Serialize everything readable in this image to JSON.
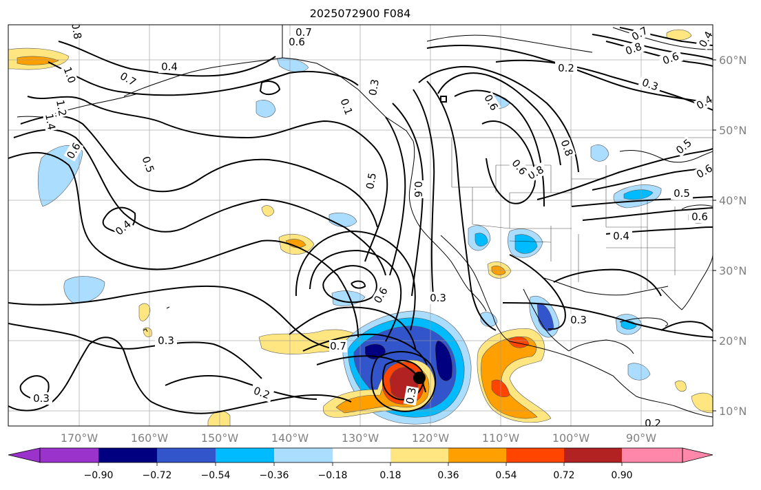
{
  "title": "2025072900 F084",
  "colors": {
    "purple": "#9933cc",
    "navy": "#000080",
    "royal": "#3355cc",
    "cyan": "#00bbff",
    "light_blue": "#aaddff",
    "white": "#ffffff",
    "light_yellow": "#ffe680",
    "orange": "#ffa000",
    "red_orange": "#ff4500",
    "dark_red": "#b22222",
    "pink": "#ff88aa",
    "grid": "#999999"
  },
  "map": {
    "lon_range": [
      -180,
      -80
    ],
    "lat_range": [
      8,
      65
    ],
    "lat_labels": [
      "60°N",
      "50°N",
      "40°N",
      "30°N",
      "20°N",
      "10°N"
    ],
    "lon_labels": [
      "170°W",
      "160°W",
      "150°W",
      "140°W",
      "130°W",
      "120°W",
      "110°W",
      "100°W",
      "90°W"
    ],
    "contour_labels": [
      "0.7",
      "0.6",
      "0.4",
      "0.7",
      "1.0",
      "1.2",
      "1.4",
      "0.8",
      "0.6",
      "0.5",
      "0.4",
      "0.3",
      "0.2",
      "0.3",
      "0.3",
      "0.5",
      "0.6",
      "0.6",
      "0.3",
      "0.7",
      "0.3",
      "0.6",
      "0.8",
      "0.8",
      "0.6",
      "0.3",
      "0.2",
      "0.6",
      "0.4",
      "0.7",
      "0.8",
      "0.5",
      "0.6",
      "0.4",
      "0.3",
      "0.2",
      "0.5",
      "0.4",
      "0.6",
      "0.1"
    ],
    "hurricane_symbol": "filled-circle"
  },
  "colorbar": {
    "tick_labels": [
      "−0.90",
      "−0.72",
      "−0.54",
      "−0.36",
      "−0.18",
      "0.18",
      "0.36",
      "0.54",
      "0.72",
      "0.90"
    ],
    "bins": [
      "#000080",
      "#3355cc",
      "#00bbff",
      "#aaddff",
      "#ffffff",
      "#ffe680",
      "#ffa000",
      "#ff4500",
      "#b22222"
    ],
    "under_color": "#9933cc",
    "over_color": "#ff88aa"
  }
}
